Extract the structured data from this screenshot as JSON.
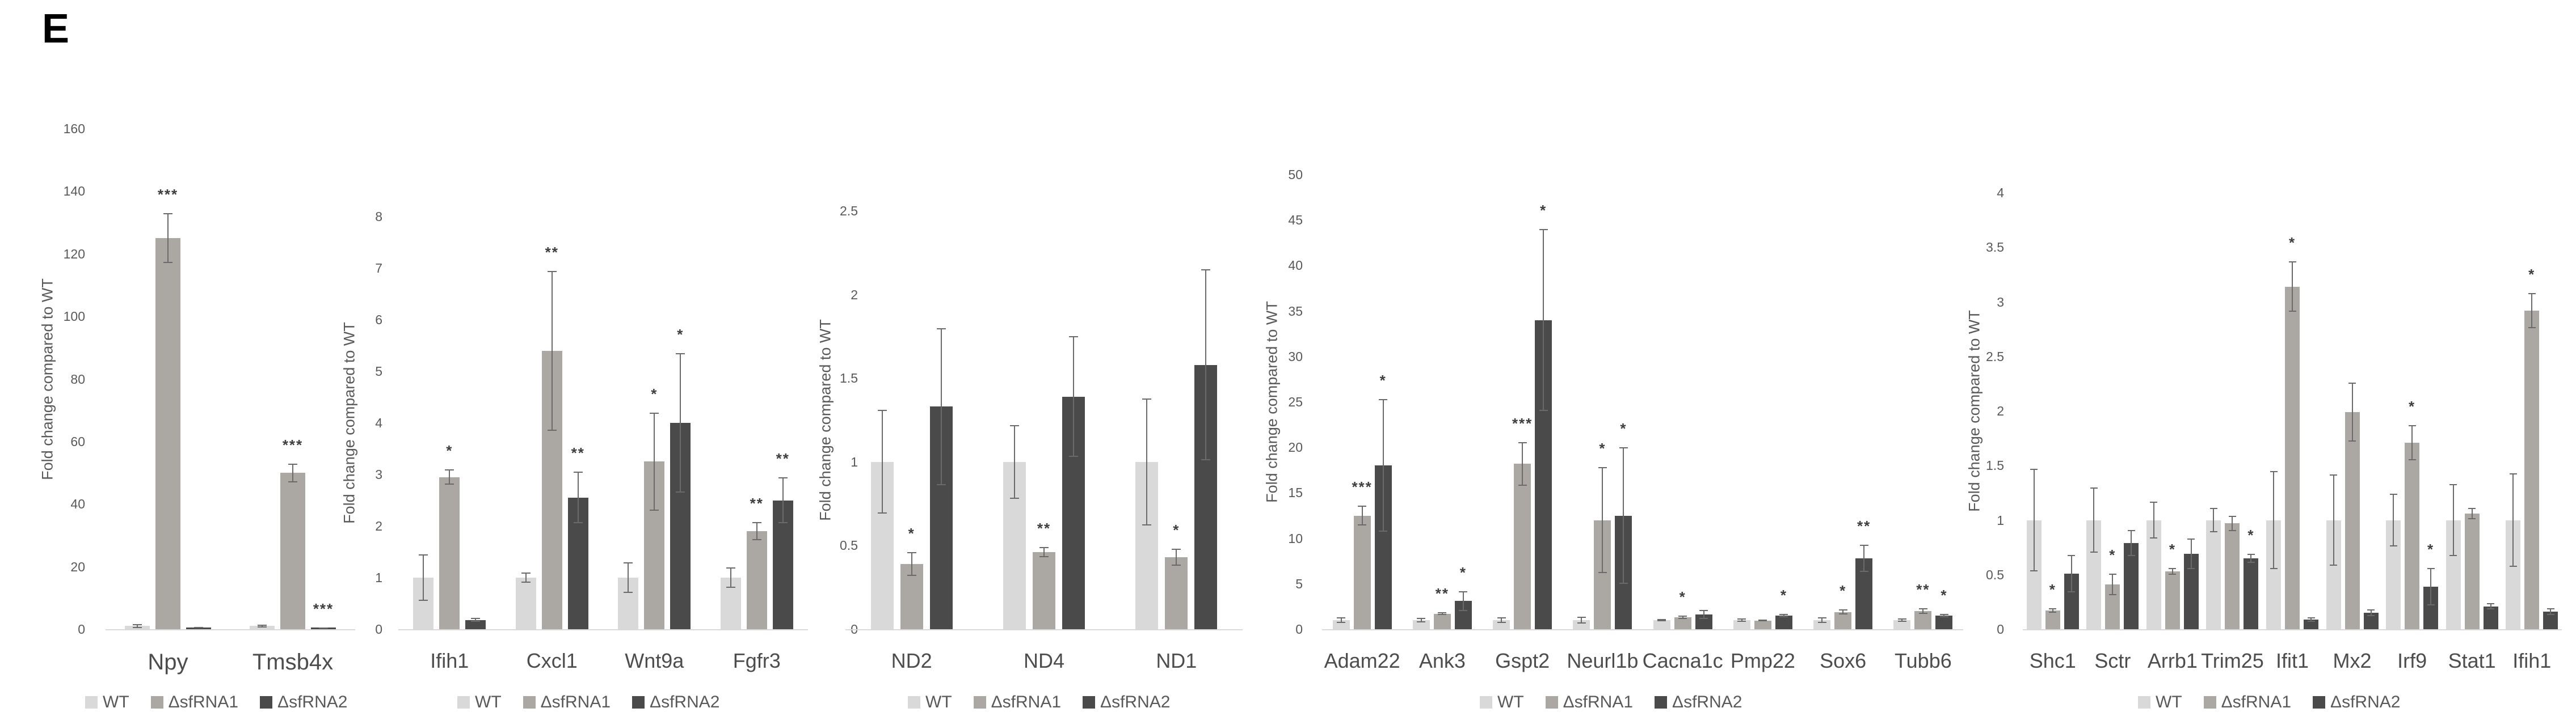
{
  "panel_label": "E",
  "legend_labels": [
    "WT",
    "ΔsfRNA1",
    "ΔsfRNA2"
  ],
  "colors": {
    "wt": "#d9d9d9",
    "sfrna1": "#aba7a3",
    "sfrna2": "#4a4a4a",
    "error_bar": "#6a6a6a",
    "tick_text": "#595959",
    "gene_text": "#4d4d4d",
    "axis_line": "#d9d9d9",
    "sig_text": "#3f3f3f"
  },
  "chart_data": [
    {
      "type": "bar",
      "title": "",
      "xlabel": "",
      "ylabel": "Fold change compared to WT",
      "ylim": [
        0,
        160
      ],
      "grid": false,
      "legend_position": "bottom",
      "yticks": [
        "0",
        "20",
        "40",
        "60",
        "80",
        "100",
        "120",
        "140",
        "160"
      ],
      "categories": [
        "Npy",
        "Tmsb4x"
      ],
      "series": [
        {
          "name": "WT",
          "values": [
            1,
            1
          ],
          "errors": [
            0.6,
            0.4
          ],
          "sig": [
            "",
            ""
          ]
        },
        {
          "name": "ΔsfRNA1",
          "values": [
            125,
            50
          ],
          "errors": [
            8,
            3
          ],
          "sig": [
            "***",
            "***"
          ]
        },
        {
          "name": "ΔsfRNA2",
          "values": [
            0.6,
            0.5
          ],
          "errors": [
            0.15,
            0.1
          ],
          "sig": [
            "",
            "***"
          ]
        }
      ]
    },
    {
      "type": "bar",
      "title": "",
      "xlabel": "",
      "ylabel": "Fold change compared to WT",
      "ylim": [
        0,
        8
      ],
      "grid": false,
      "legend_position": "bottom",
      "yticks": [
        "0",
        "1",
        "2",
        "3",
        "4",
        "5",
        "6",
        "7",
        "8"
      ],
      "categories": [
        "Ifih1",
        "Cxcl1",
        "Wnt9a",
        "Fgfr3"
      ],
      "series": [
        {
          "name": "WT",
          "values": [
            1,
            1,
            1,
            1
          ],
          "errors": [
            0.45,
            0.1,
            0.3,
            0.2
          ],
          "sig": [
            "",
            "",
            "",
            ""
          ]
        },
        {
          "name": "ΔsfRNA1",
          "values": [
            2.95,
            5.4,
            3.25,
            1.9
          ],
          "errors": [
            0.15,
            1.55,
            0.95,
            0.18
          ],
          "sig": [
            "*",
            "**",
            "*",
            "**"
          ]
        },
        {
          "name": "ΔsfRNA2",
          "values": [
            0.18,
            2.55,
            4.0,
            2.5
          ],
          "errors": [
            0.04,
            0.5,
            1.35,
            0.45
          ],
          "sig": [
            "",
            "**",
            "*",
            "**"
          ]
        }
      ]
    },
    {
      "type": "bar",
      "title": "",
      "xlabel": "",
      "ylabel": "Fold change compared to WT",
      "ylim": [
        0,
        2.5
      ],
      "grid": false,
      "legend_position": "bottom",
      "yticks": [
        "0",
        "0.5",
        "1",
        "1.5",
        "2",
        "2.5"
      ],
      "categories": [
        "ND2",
        "ND4",
        "ND1"
      ],
      "series": [
        {
          "name": "WT",
          "values": [
            1,
            1,
            1
          ],
          "errors": [
            0.31,
            0.22,
            0.38
          ],
          "sig": [
            "",
            "",
            ""
          ]
        },
        {
          "name": "ΔsfRNA1",
          "values": [
            0.39,
            0.46,
            0.43
          ],
          "errors": [
            0.07,
            0.03,
            0.05
          ],
          "sig": [
            "*",
            "**",
            "*"
          ]
        },
        {
          "name": "ΔsfRNA2",
          "values": [
            1.33,
            1.39,
            1.58
          ],
          "errors": [
            0.47,
            0.36,
            0.57
          ],
          "sig": [
            "",
            "",
            ""
          ]
        }
      ]
    },
    {
      "type": "bar",
      "title": "",
      "xlabel": "",
      "ylabel": "Fold change compared to WT",
      "ylim": [
        0,
        50
      ],
      "grid": false,
      "legend_position": "bottom",
      "yticks": [
        "0",
        "5",
        "10",
        "15",
        "20",
        "25",
        "30",
        "35",
        "40",
        "45",
        "50"
      ],
      "categories": [
        "Adam22",
        "Ank3",
        "Gspt2",
        "Neurl1b",
        "Cacna1c",
        "Pmp22",
        "Sox6",
        "Tubb6"
      ],
      "series": [
        {
          "name": "WT",
          "values": [
            1,
            1,
            1,
            1,
            1,
            1,
            1,
            1
          ],
          "errors": [
            0.3,
            0.25,
            0.3,
            0.4,
            0.15,
            0.2,
            0.3,
            0.2
          ],
          "sig": [
            "",
            "",
            "",
            "",
            "",
            "",
            "",
            ""
          ]
        },
        {
          "name": "ΔsfRNA1",
          "values": [
            12.5,
            1.7,
            18.2,
            12,
            1.3,
            0.95,
            1.9,
            2.0
          ],
          "errors": [
            1.1,
            0.15,
            2.4,
            5.8,
            0.2,
            0.1,
            0.3,
            0.3
          ],
          "sig": [
            "***",
            "**",
            "***",
            "*",
            "*",
            "",
            "*",
            "**"
          ]
        },
        {
          "name": "ΔsfRNA2",
          "values": [
            18,
            3.1,
            34,
            12.5,
            1.6,
            1.5,
            7.8,
            1.5
          ],
          "errors": [
            7.3,
            1.1,
            10,
            7.5,
            0.5,
            0.2,
            1.5,
            0.2
          ],
          "sig": [
            "*",
            "*",
            "*",
            "*",
            "",
            "*",
            "**",
            "*"
          ]
        }
      ]
    },
    {
      "type": "bar",
      "title": "",
      "xlabel": "",
      "ylabel": "Fold change compared to WT",
      "ylim": [
        0,
        4
      ],
      "grid": false,
      "legend_position": "bottom",
      "yticks": [
        "0",
        "0.5",
        "1",
        "1.5",
        "2",
        "2.5",
        "3",
        "3.5",
        "4"
      ],
      "categories": [
        "Shc1",
        "Sctr",
        "Arrb1",
        "Trim25",
        "Ifit1",
        "Mx2",
        "Irf9",
        "Stat1",
        "Ifih1"
      ],
      "series": [
        {
          "name": "WT",
          "values": [
            1,
            1,
            1,
            1,
            1,
            1,
            1,
            1,
            1
          ],
          "errors": [
            0.47,
            0.3,
            0.17,
            0.11,
            0.45,
            0.42,
            0.24,
            0.33,
            0.43
          ],
          "sig": [
            "",
            "",
            "",
            "",
            "",
            "",
            "",
            "",
            ""
          ]
        },
        {
          "name": "ΔsfRNA1",
          "values": [
            0.17,
            0.41,
            0.53,
            0.97,
            3.14,
            1.99,
            1.71,
            1.06,
            2.92
          ],
          "errors": [
            0.02,
            0.1,
            0.03,
            0.07,
            0.23,
            0.27,
            0.16,
            0.05,
            0.16
          ],
          "sig": [
            "*",
            "*",
            "*",
            "",
            "*",
            "",
            "*",
            "",
            "*"
          ]
        },
        {
          "name": "ΔsfRNA2",
          "values": [
            0.51,
            0.79,
            0.69,
            0.65,
            0.09,
            0.15,
            0.39,
            0.21,
            0.16
          ],
          "errors": [
            0.17,
            0.12,
            0.14,
            0.04,
            0.02,
            0.03,
            0.17,
            0.03,
            0.03
          ],
          "sig": [
            "",
            "",
            "",
            "*",
            "",
            "",
            "*",
            "",
            ""
          ]
        }
      ]
    }
  ]
}
